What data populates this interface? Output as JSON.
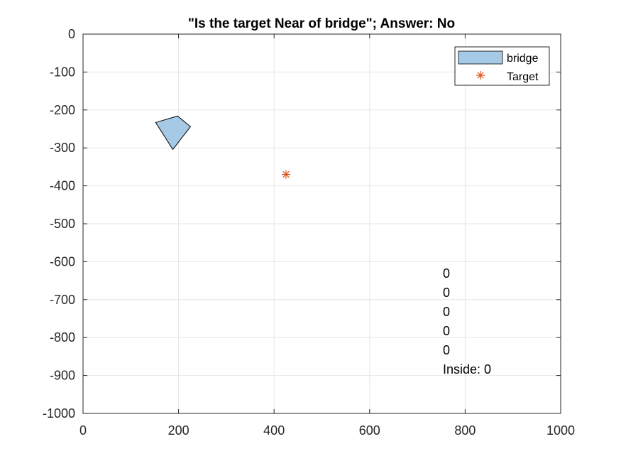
{
  "chart_data": {
    "type": "scatter",
    "title": "\"Is the target Near of bridge\"; Answer: No",
    "xlabel": "",
    "ylabel": "",
    "xlim": [
      0,
      1000
    ],
    "ylim": [
      -1000,
      0
    ],
    "xticks": [
      "0",
      "200",
      "400",
      "600",
      "800",
      "1000"
    ],
    "yticks": [
      "0",
      "-100",
      "-200",
      "-300",
      "-400",
      "-500",
      "-600",
      "-700",
      "-800",
      "-900",
      "-1000"
    ],
    "grid": true,
    "legend_position": "top-right",
    "polygon": {
      "name": "bridge",
      "color": "#a6cae6",
      "points": [
        [
          152,
          -233
        ],
        [
          198,
          -216
        ],
        [
          225,
          -244
        ],
        [
          188,
          -304
        ]
      ]
    },
    "target": {
      "name": "Target",
      "color": "#d95319",
      "x": 425,
      "y": -370
    },
    "annotations": [
      "0",
      "0",
      "0",
      "0",
      "0",
      "Inside: 0"
    ]
  }
}
